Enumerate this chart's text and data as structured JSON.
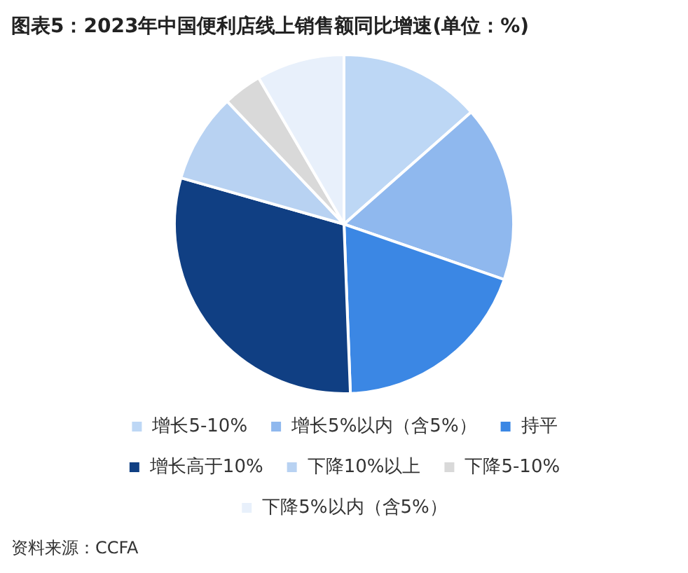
{
  "chart_data": {
    "type": "pie",
    "title": "图表5：2023年中国便利店线上销售额同比增速(单位：%)",
    "categories": [
      "增长5-10%",
      "增长5%以内（含5%）",
      "持平",
      "增长高于10%",
      "下降10%以上",
      "下降5-10%",
      "下降5%以内（含5%）"
    ],
    "values": [
      13.5,
      16.8,
      19.1,
      30.0,
      8.5,
      3.7,
      8.4
    ],
    "colors": [
      "#bdd7f5",
      "#8fb8ee",
      "#3b87e4",
      "#103f83",
      "#b8d2f2",
      "#d9d9d9",
      "#e8f0fb"
    ],
    "legend": "bottom",
    "annotations": [
      "资料来源：CCFA"
    ]
  }
}
